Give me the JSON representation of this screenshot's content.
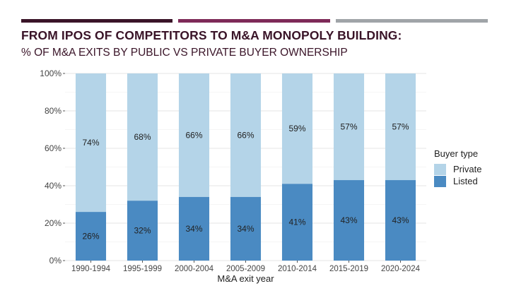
{
  "header": {
    "title": "FROM IPOS OF COMPETITORS TO M&A MONOPOLY BUILDING:",
    "subtitle": "% OF M&A EXITS BY PUBLIC VS PRIVATE BUYER OWNERSHIP"
  },
  "colors": {
    "listed": "#4a8ac2",
    "private": "#b4d4e8",
    "title": "#3a1428",
    "accent_dark": "#3a1428",
    "accent_mid": "#7e2a58",
    "accent_gray": "#a0a4a8"
  },
  "chart_data": {
    "type": "bar",
    "stacked": true,
    "categories": [
      "1990-1994",
      "1995-1999",
      "2000-2004",
      "2005-2009",
      "2010-2014",
      "2015-2019",
      "2020-2024"
    ],
    "series": [
      {
        "name": "Listed",
        "values": [
          26,
          32,
          34,
          34,
          41,
          43,
          43
        ],
        "labels": [
          "26%",
          "32%",
          "34%",
          "34%",
          "41%",
          "43%",
          "43%"
        ]
      },
      {
        "name": "Private",
        "values": [
          74,
          68,
          66,
          66,
          59,
          57,
          57
        ],
        "labels": [
          "74%",
          "68%",
          "66%",
          "66%",
          "59%",
          "57%",
          "57%"
        ]
      }
    ],
    "xlabel": "M&A exit year",
    "ylabel": "",
    "ylim": [
      0,
      100
    ],
    "yticks": [
      "0%",
      "20%",
      "40%",
      "60%",
      "80%",
      "100%"
    ],
    "grid": true,
    "legend": {
      "title": "Buyer type",
      "position": "right",
      "entries": [
        "Private",
        "Listed"
      ]
    }
  }
}
